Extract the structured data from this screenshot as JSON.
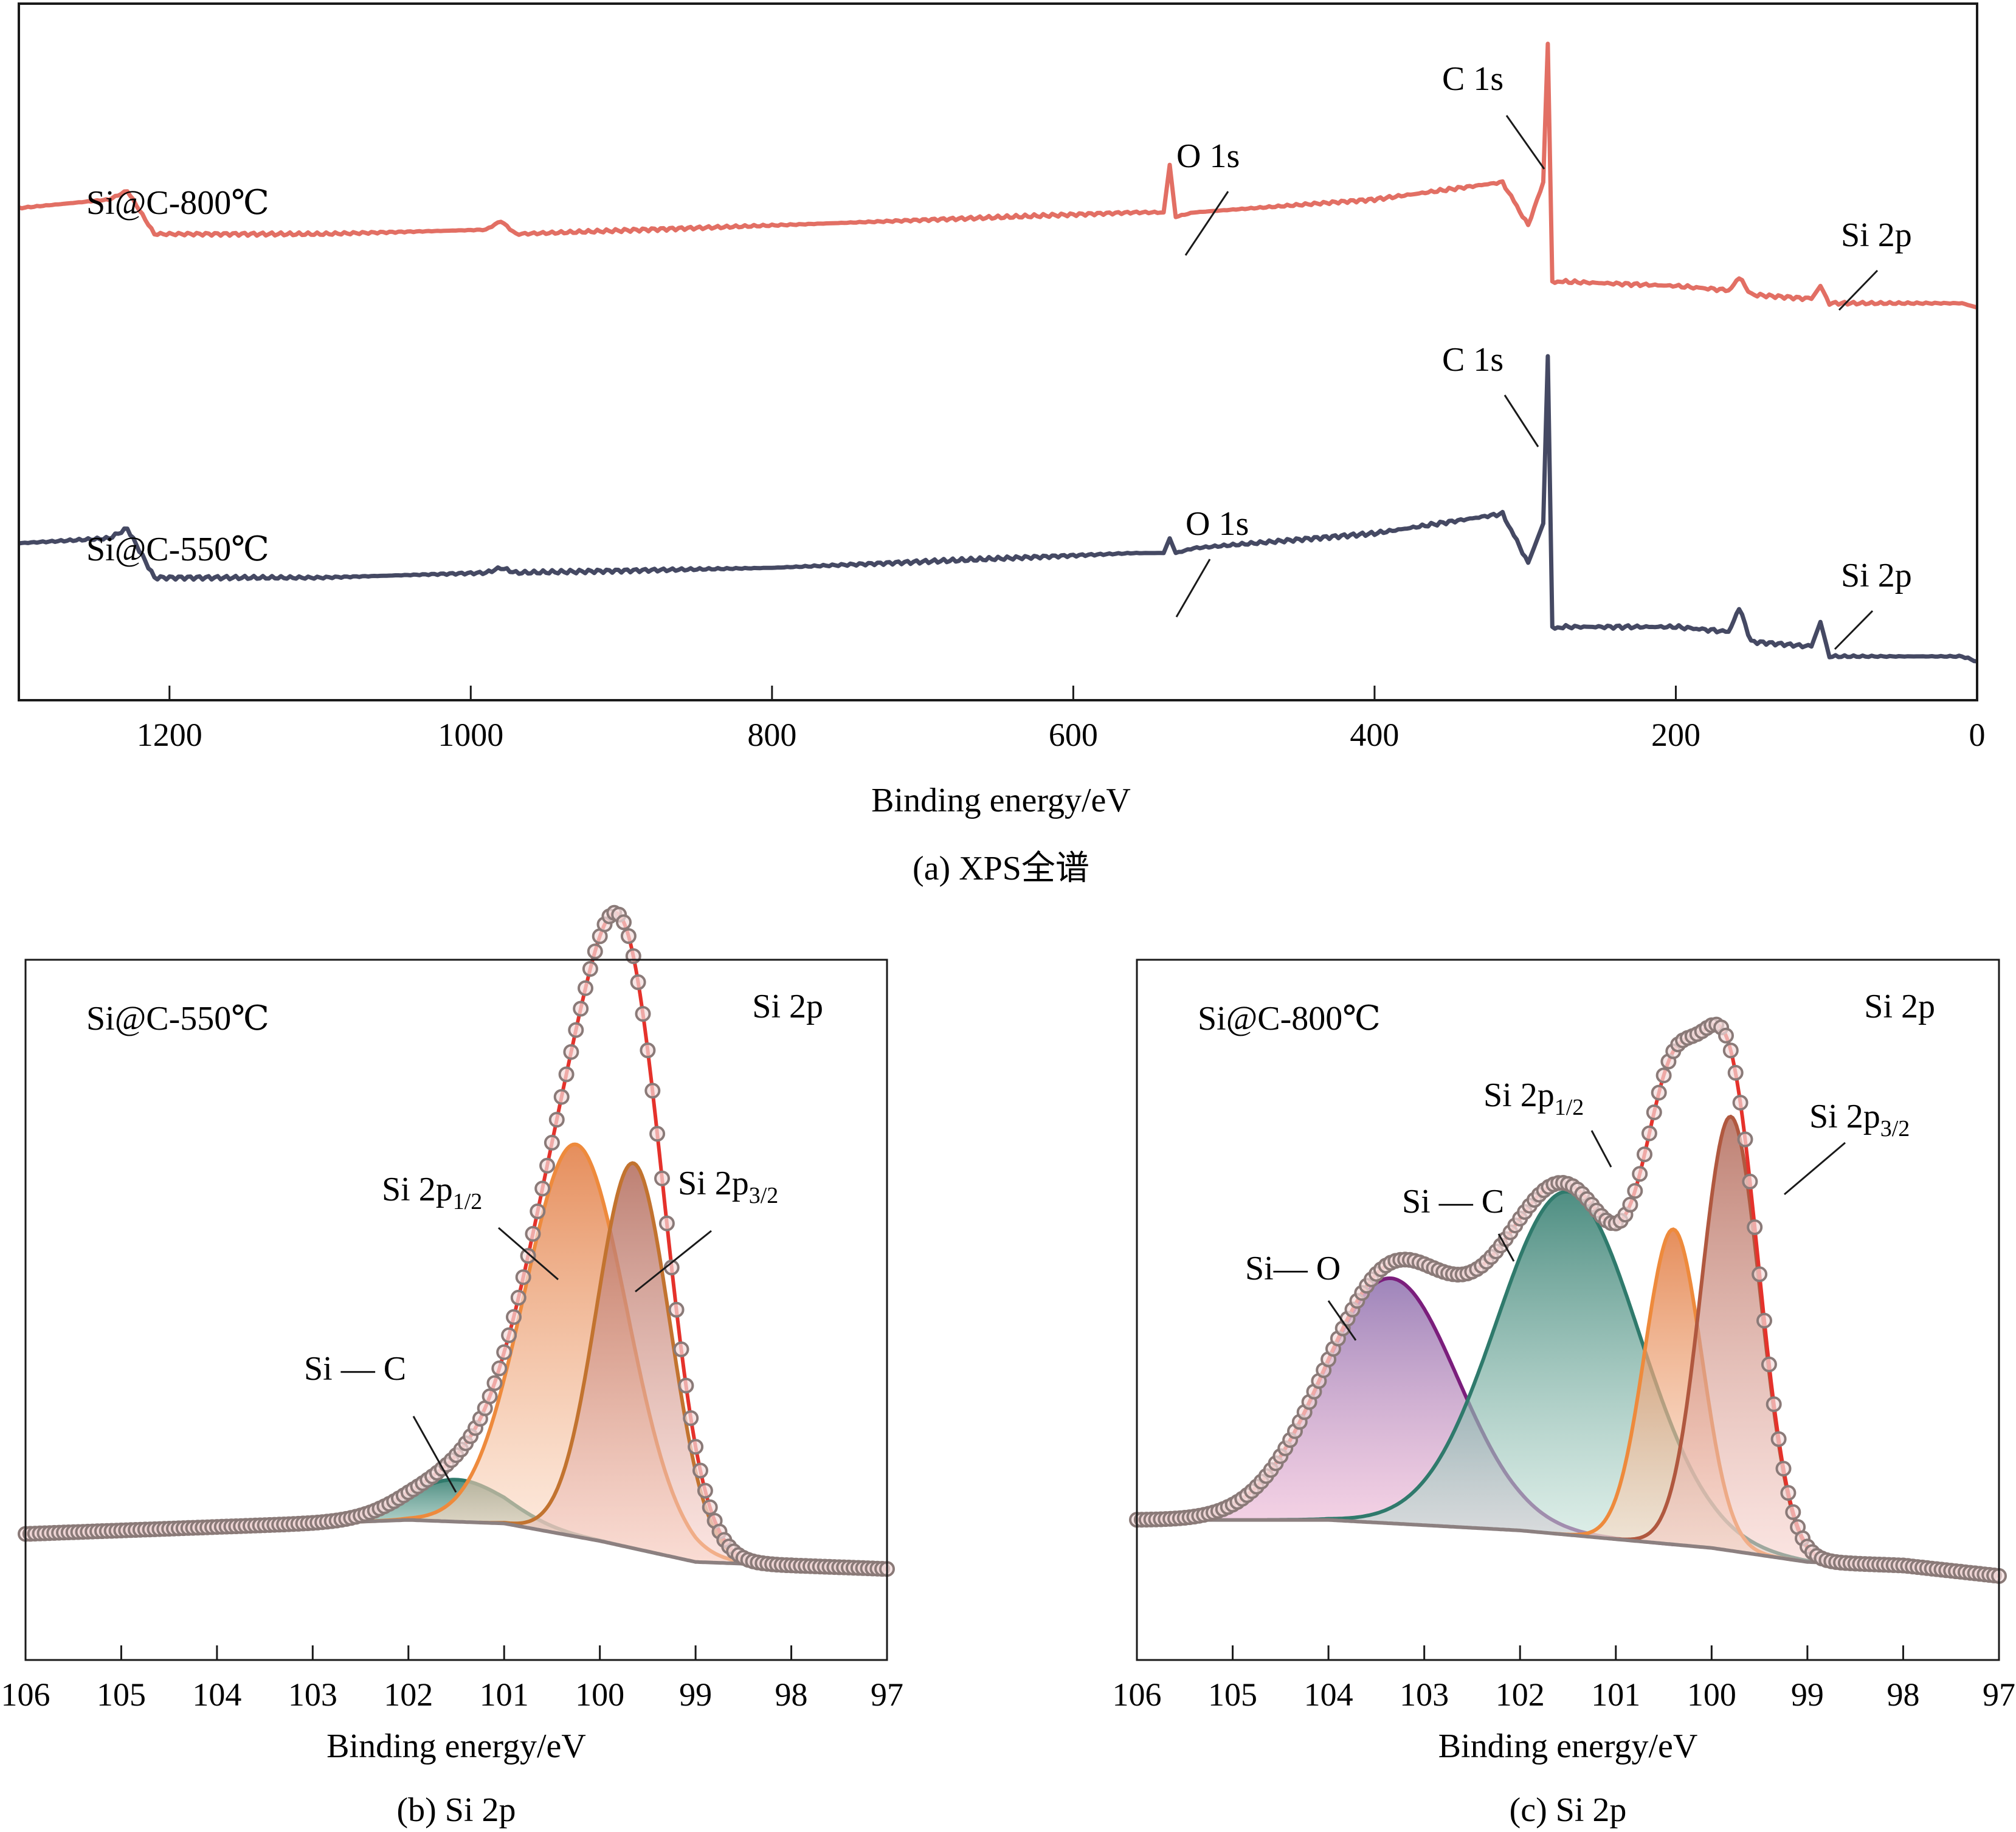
{
  "figure": {
    "colors": {
      "survey_800": "#e06357",
      "survey_550": "#353a56",
      "raw_marker_edge": "#8a7a78",
      "raw_marker_fill": "#f3dcdc",
      "envelope": "#e5322b",
      "background_line": "#8c8080",
      "si2p12": "#ee8a3c",
      "si2p32": "#c2732f",
      "si_c": "#2f7a6c",
      "si_o": "#7b1e7c"
    }
  },
  "chart_data": [
    {
      "id": "a",
      "type": "line",
      "title": "",
      "caption": "(a) XPS全谱",
      "xlabel": "Binding energy/eV",
      "ylabel": "",
      "xlim": [
        1300,
        0
      ],
      "xticks": [
        1200,
        1000,
        800,
        600,
        400,
        200,
        0
      ],
      "xtick_labels": [
        "1200",
        "1000",
        "800",
        "600",
        "400",
        "200",
        "0"
      ],
      "grid": false,
      "series": [
        {
          "name": "Si@C-800℃",
          "color": "#e06357",
          "x": [
            1300,
            1240,
            1228,
            1210,
            1100,
            990,
            980,
            970,
            800,
            560,
            540,
            536,
            532,
            520,
            400,
            315,
            298,
            288,
            285,
            282,
            275,
            200,
            165,
            158,
            150,
            110,
            104,
            98,
            50,
            10,
            0
          ],
          "y": [
            0.62,
            0.64,
            0.66,
            0.56,
            0.56,
            0.57,
            0.59,
            0.56,
            0.58,
            0.61,
            0.61,
            0.72,
            0.6,
            0.61,
            0.64,
            0.68,
            0.58,
            0.68,
            1.0,
            0.45,
            0.45,
            0.44,
            0.43,
            0.46,
            0.42,
            0.41,
            0.44,
            0.4,
            0.4,
            0.4,
            0.39
          ]
        },
        {
          "name": "Si@C-550℃",
          "color": "#353a56",
          "x": [
            1300,
            1240,
            1228,
            1210,
            1100,
            990,
            980,
            970,
            800,
            560,
            540,
            536,
            532,
            520,
            400,
            315,
            298,
            288,
            285,
            282,
            275,
            200,
            165,
            158,
            150,
            110,
            104,
            98,
            50,
            10,
            0
          ],
          "y": [
            0.62,
            0.63,
            0.65,
            0.55,
            0.55,
            0.56,
            0.57,
            0.56,
            0.57,
            0.6,
            0.6,
            0.63,
            0.6,
            0.61,
            0.64,
            0.68,
            0.58,
            0.66,
            1.0,
            0.45,
            0.45,
            0.45,
            0.44,
            0.49,
            0.42,
            0.41,
            0.46,
            0.39,
            0.39,
            0.39,
            0.38
          ]
        }
      ],
      "annotations": [
        {
          "text": "C 1s",
          "series": "Si@C-800℃",
          "x": 285
        },
        {
          "text": "O 1s",
          "series": "Si@C-800℃",
          "x": 532
        },
        {
          "text": "Si 2p",
          "series": "Si@C-800℃",
          "x": 99
        },
        {
          "text": "C 1s",
          "series": "Si@C-550℃",
          "x": 285
        },
        {
          "text": "O 1s",
          "series": "Si@C-550℃",
          "x": 532
        },
        {
          "text": "Si 2p",
          "series": "Si@C-550℃",
          "x": 99
        }
      ],
      "sample_labels": [
        "Si@C-800℃",
        "Si@C-550℃"
      ]
    },
    {
      "id": "b",
      "type": "area",
      "title": "Si 2p",
      "sample": "Si@C-550℃",
      "caption": "(b) Si 2p",
      "xlabel": "Binding energy/eV",
      "ylabel": "",
      "xlim": [
        106,
        97
      ],
      "ylim": [
        0,
        1
      ],
      "xticks": [
        106,
        105,
        104,
        103,
        102,
        101,
        100,
        99,
        98,
        97
      ],
      "xtick_labels": [
        "106",
        "105",
        "104",
        "103",
        "102",
        "101",
        "100",
        "99",
        "98",
        "97"
      ],
      "grid": false,
      "background": {
        "x": [
          106,
          102,
          101,
          100,
          99,
          98,
          97
        ],
        "y": [
          0.18,
          0.2,
          0.195,
          0.17,
          0.14,
          0.135,
          0.13
        ]
      },
      "components": [
        {
          "name": "Si—C",
          "label": "Si — C",
          "center": 101.5,
          "height": 0.06,
          "fwhm": 1.2,
          "color": "#2f7a6c"
        },
        {
          "name": "Si 2p1/2",
          "label": "Si 2p",
          "label_sub": "1/2",
          "center": 100.25,
          "height": 0.56,
          "fwhm": 1.25,
          "color": "#ee8a3c"
        },
        {
          "name": "Si 2p3/2",
          "label": "Si 2p",
          "label_sub": "3/2",
          "center": 99.65,
          "height": 0.55,
          "fwhm": 0.9,
          "color": "#c2732f"
        }
      ],
      "raw_data_peak": {
        "x": 99.85,
        "y": 0.89
      }
    },
    {
      "id": "c",
      "type": "area",
      "title": "Si 2p",
      "sample": "Si@C-800℃",
      "caption": "(c) Si 2p",
      "xlabel": "Binding energy/eV",
      "ylabel": "",
      "xlim": [
        106,
        97
      ],
      "ylim": [
        0,
        1
      ],
      "xticks": [
        106,
        105,
        104,
        103,
        102,
        101,
        100,
        99,
        98,
        97
      ],
      "xtick_labels": [
        "106",
        "105",
        "104",
        "103",
        "102",
        "101",
        "100",
        "99",
        "98",
        "97"
      ],
      "grid": false,
      "background": {
        "x": [
          106,
          104,
          102,
          100,
          99,
          98,
          97
        ],
        "y": [
          0.2,
          0.2,
          0.185,
          0.16,
          0.14,
          0.135,
          0.12
        ]
      },
      "components": [
        {
          "name": "Si—O",
          "label": "Si— O",
          "center": 103.35,
          "height": 0.35,
          "fwhm": 1.65,
          "color": "#7b1e7c"
        },
        {
          "name": "Si—C",
          "label": "Si — C",
          "center": 101.5,
          "height": 0.49,
          "fwhm": 1.75,
          "color": "#2f7a6c"
        },
        {
          "name": "Si 2p1/2",
          "label": "Si 2p",
          "label_sub": "1/2",
          "center": 100.4,
          "height": 0.45,
          "fwhm": 0.7,
          "color": "#ee8a3c"
        },
        {
          "name": "Si 2p3/2",
          "label": "Si 2p",
          "label_sub": "3/2",
          "center": 99.8,
          "height": 0.62,
          "fwhm": 0.72,
          "color": "#b0583f"
        }
      ],
      "raw_data_peak": {
        "x": 99.9,
        "y": 0.91
      }
    }
  ]
}
